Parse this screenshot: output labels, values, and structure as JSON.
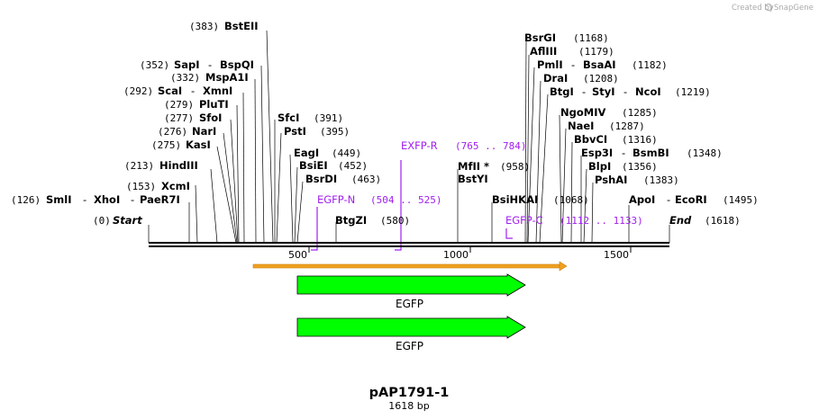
{
  "credit": {
    "created_by": "Created by",
    "brand": "SnapGene"
  },
  "map": {
    "name": "pAP1791-1",
    "length_label": "1618 bp",
    "length": 1618
  },
  "ticks": [
    "500",
    "1000",
    "1500"
  ],
  "ends": {
    "start_pos": "(0)",
    "start": "Start",
    "end": "End",
    "end_pos": "(1618)"
  },
  "sites": [
    {
      "pos": "(383)",
      "name": "BstEII"
    },
    {
      "pos": "(352)",
      "name": "SapI",
      "sep": "-",
      "name2": "BspQI"
    },
    {
      "pos": "(332)",
      "name": "MspA1I"
    },
    {
      "pos": "(292)",
      "name": "ScaI",
      "sep": "-",
      "name2": "XmnI"
    },
    {
      "pos": "(279)",
      "name": "PluTI"
    },
    {
      "pos": "(277)",
      "name": "SfoI"
    },
    {
      "pos": "(276)",
      "name": "NarI"
    },
    {
      "pos": "(275)",
      "name": "KasI"
    },
    {
      "pos": "(213)",
      "name": "HindIII"
    },
    {
      "pos": "(153)",
      "name": "XcmI"
    },
    {
      "pos": "(126)",
      "name": "SmlI",
      "sep": "-",
      "name2": "XhoI",
      "sep2": "-",
      "name3": "PaeR7I"
    },
    {
      "name": "SfcI",
      "pos": "(391)"
    },
    {
      "name": "PstI",
      "pos": "(395)"
    },
    {
      "name": "EagI",
      "pos": "(449)"
    },
    {
      "name": "BsiEI",
      "pos": "(452)"
    },
    {
      "name": "BsrDI",
      "pos": "(463)"
    },
    {
      "name": "BtgZI",
      "pos": "(580)"
    },
    {
      "name": "MfII *",
      "pos": "(958)"
    },
    {
      "name": "BstYI"
    },
    {
      "name": "BsiHKAI",
      "pos": "(1068)"
    },
    {
      "name": "BsrGI",
      "pos": "(1168)"
    },
    {
      "name": "AflIII",
      "pos": "(1179)"
    },
    {
      "name": "PmlI",
      "sep": "-",
      "name2": "BsaAI",
      "pos": "(1182)"
    },
    {
      "name": "DraI",
      "pos": "(1208)"
    },
    {
      "name": "BtgI",
      "sep": "-",
      "name2": "StyI",
      "sep2": "-",
      "name3": "NcoI",
      "pos": "(1219)"
    },
    {
      "name": "NgoMIV",
      "pos": "(1285)"
    },
    {
      "name": "NaeI",
      "pos": "(1287)"
    },
    {
      "name": "BbvCI",
      "pos": "(1316)"
    },
    {
      "name": "Esp3I",
      "sep": "-",
      "name2": "BsmBI",
      "pos": "(1348)"
    },
    {
      "name": "BlpI",
      "pos": "(1356)"
    },
    {
      "name": "PshAI",
      "pos": "(1383)"
    },
    {
      "name": "ApoI",
      "sep": "-",
      "name2": "EcoRI",
      "pos": "(1495)"
    }
  ],
  "primers": [
    {
      "name": "EGFP-N",
      "range": "(504 .. 525)"
    },
    {
      "name": "EXFP-R",
      "range": "(765 .. 784)"
    },
    {
      "name": "EGFP-C",
      "range": "(1112 .. 1133)"
    }
  ],
  "features": [
    {
      "name": "EGFP",
      "start": 465,
      "end": 1184
    },
    {
      "name": "EGFP",
      "start": 465,
      "end": 1184
    }
  ],
  "colors": {
    "feature": "#00ff00",
    "primer": "#a020f0",
    "orf": "#f0a020",
    "backbone": "#000000"
  }
}
